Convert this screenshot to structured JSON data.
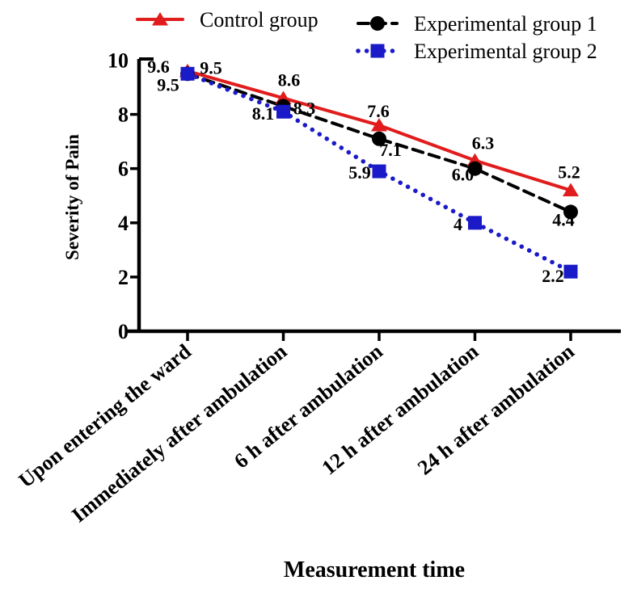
{
  "chart_data": {
    "type": "line",
    "title": "",
    "xlabel": "Measurement time",
    "ylabel": "Severity of Pain",
    "ylim": [
      0,
      10
    ],
    "yticks": [
      10,
      8,
      6,
      4,
      2,
      0
    ],
    "grid": false,
    "legend_position": "top",
    "categories": [
      "Upon entering the ward",
      "Immediately after ambulation",
      "6 h after ambulation",
      "12 h after ambulation",
      "24 h after ambulation"
    ],
    "series": [
      {
        "name": "Control group",
        "color": "#e11c1c",
        "marker": "triangle",
        "line_style": "solid",
        "values": [
          9.6,
          8.6,
          7.6,
          6.3,
          5.2
        ],
        "labels": [
          "9.6",
          "8.6",
          "7.6",
          "6.3",
          "5.2"
        ]
      },
      {
        "name": "Experimental group 1",
        "color": "#000000",
        "marker": "circle",
        "line_style": "dashed",
        "values": [
          9.5,
          8.3,
          7.1,
          6.0,
          4.4
        ],
        "labels": [
          "9.5",
          "8.3",
          "7.1",
          "6.0",
          "4.4"
        ]
      },
      {
        "name": "Experimental group 2",
        "color": "#1a1ac8",
        "marker": "square",
        "line_style": "dotted",
        "values": [
          9.5,
          8.1,
          5.9,
          4,
          2.2
        ],
        "labels": [
          "9.5",
          "8.1",
          "5.9",
          "4",
          "2.2"
        ]
      }
    ]
  }
}
